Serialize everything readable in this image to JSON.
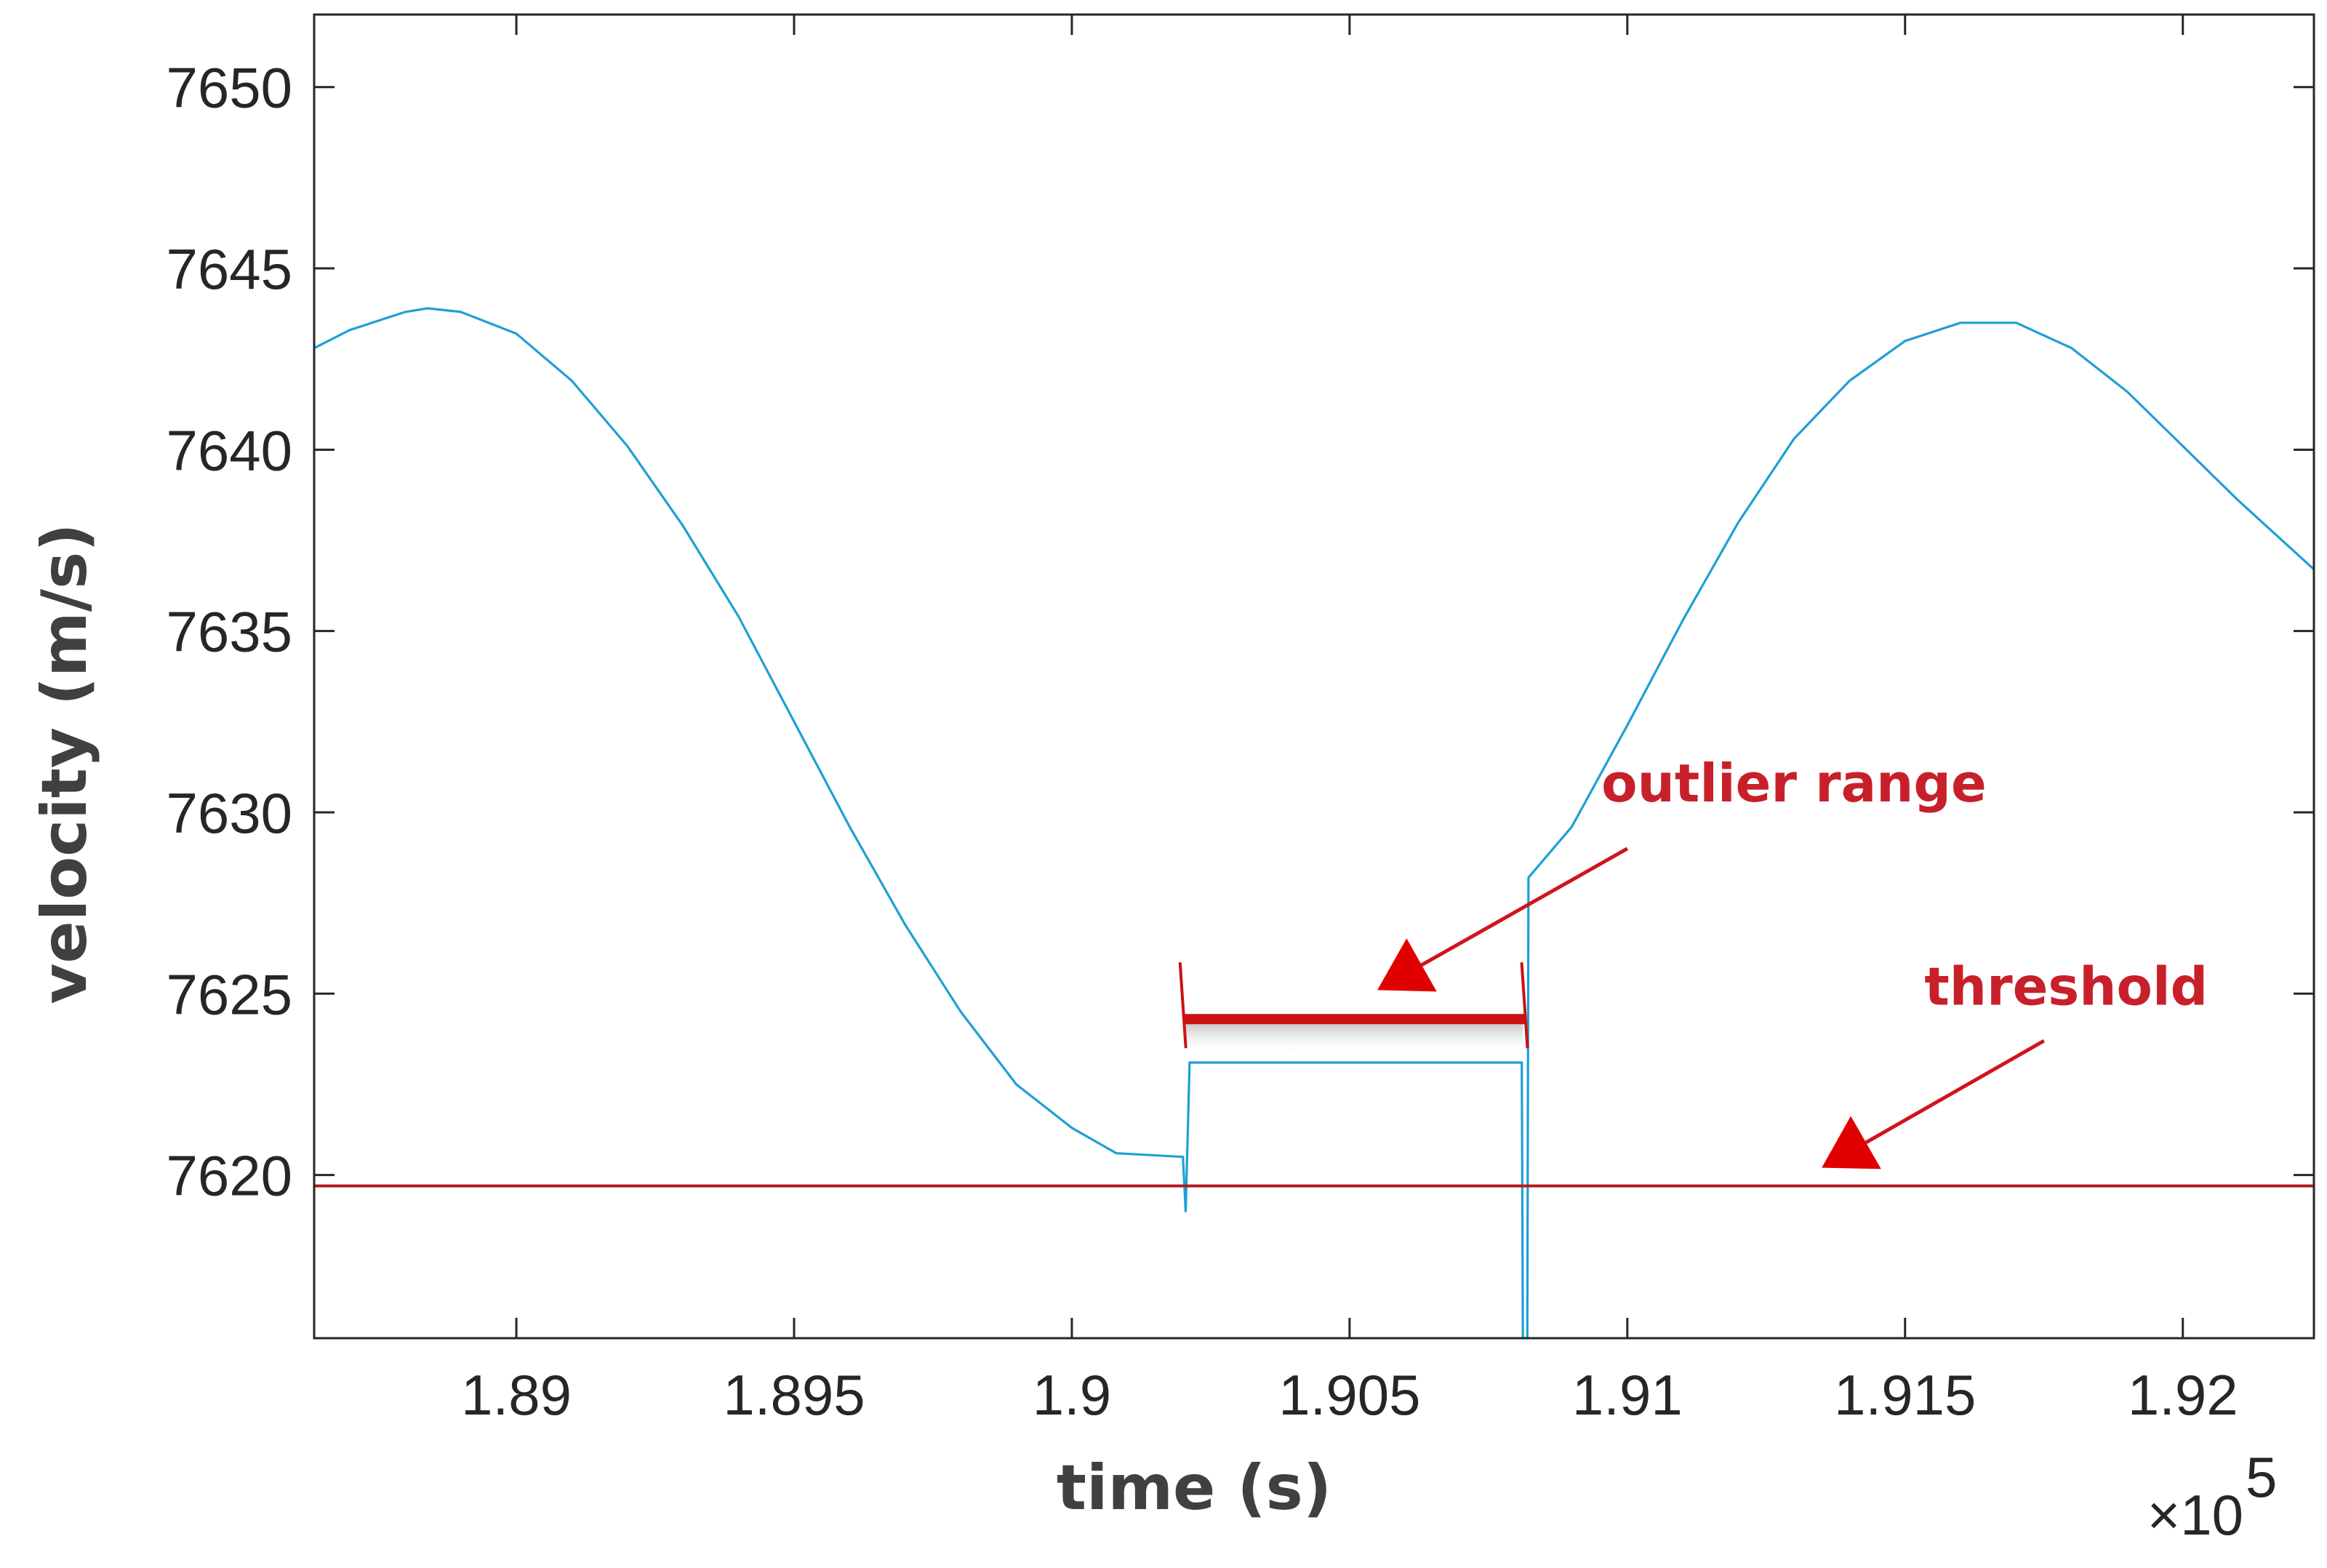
{
  "chart_data": {
    "type": "line",
    "xlabel": "time (s)",
    "ylabel": "velocity (m/s)",
    "x_exponent_label": "×10",
    "x_exponent_power": "5",
    "xlim": [
      188636,
      192236
    ],
    "ylim": [
      7615.5,
      7652
    ],
    "x_ticks": [
      189000,
      189500,
      190000,
      190500,
      191000,
      191500,
      192000
    ],
    "x_tick_labels": [
      "1.89",
      "1.895",
      "1.9",
      "1.905",
      "1.91",
      "1.915",
      "1.92"
    ],
    "y_ticks": [
      7620,
      7625,
      7630,
      7635,
      7640,
      7645,
      7650
    ],
    "y_tick_labels": [
      "7620",
      "7625",
      "7630",
      "7635",
      "7640",
      "7645",
      "7650"
    ],
    "grid": false,
    "series": [
      {
        "color": "#1f9fd5",
        "points": [
          [
            188636,
            7642.8
          ],
          [
            188700,
            7643.3
          ],
          [
            188800,
            7643.8
          ],
          [
            188840,
            7643.9
          ],
          [
            188900,
            7643.8
          ],
          [
            189000,
            7643.2
          ],
          [
            189100,
            7641.9
          ],
          [
            189200,
            7640.1
          ],
          [
            189300,
            7637.9
          ],
          [
            189400,
            7635.4
          ],
          [
            189500,
            7632.5
          ],
          [
            189600,
            7629.6
          ],
          [
            189700,
            7626.9
          ],
          [
            189800,
            7624.5
          ],
          [
            189900,
            7622.5
          ],
          [
            190000,
            7621.3
          ],
          [
            190080,
            7620.6
          ],
          [
            190200,
            7620.5
          ],
          [
            190205,
            7619.0
          ],
          [
            190212,
            7623.1
          ],
          [
            190810,
            7623.1
          ],
          [
            190812,
            7615.5
          ],
          [
            190820,
            7615.5
          ],
          [
            190822,
            7628.2
          ],
          [
            190900,
            7629.6
          ],
          [
            191000,
            7632.4
          ],
          [
            191100,
            7635.3
          ],
          [
            191200,
            7638.0
          ],
          [
            191300,
            7640.3
          ],
          [
            191400,
            7641.9
          ],
          [
            191500,
            7643.0
          ],
          [
            191600,
            7643.5
          ],
          [
            191700,
            7643.5
          ],
          [
            191800,
            7642.8
          ],
          [
            191900,
            7641.6
          ],
          [
            192000,
            7640.1
          ],
          [
            192100,
            7638.6
          ],
          [
            192236,
            7636.7
          ]
        ]
      }
    ],
    "threshold": {
      "y": 7619.7,
      "color": "#b01c1c"
    },
    "outlier_range": {
      "x": [
        190200,
        190815
      ],
      "y": 7624.3,
      "color": "#cc1111"
    },
    "annotations": [
      {
        "text": "outlier range",
        "x": 191300,
        "y": 7630.3,
        "arrow_from": [
          191000,
          7629.0
        ],
        "arrow_to": [
          190550,
          7625.1
        ]
      },
      {
        "text": "threshold",
        "x": 191790,
        "y": 7624.7,
        "arrow_from": [
          191750,
          7623.7
        ],
        "arrow_to": [
          191350,
          7620.2
        ]
      }
    ]
  }
}
